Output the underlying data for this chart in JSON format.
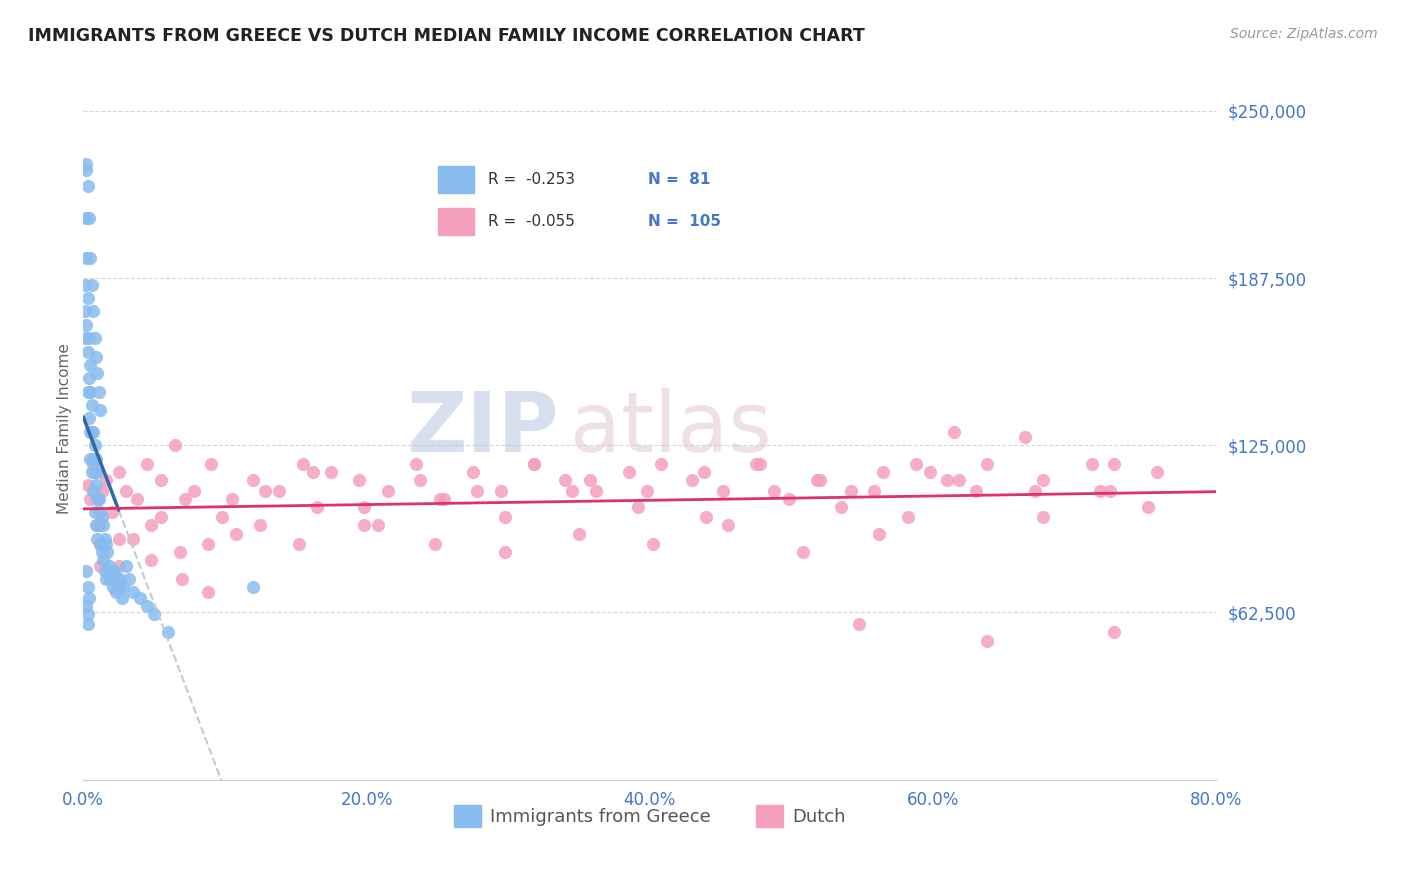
{
  "title": "IMMIGRANTS FROM GREECE VS DUTCH MEDIAN FAMILY INCOME CORRELATION CHART",
  "source_text": "Source: ZipAtlas.com",
  "ylabel": "Median Family Income",
  "xlim": [
    0.0,
    0.8
  ],
  "ylim": [
    0,
    262500
  ],
  "yticks": [
    0,
    62500,
    125000,
    187500,
    250000
  ],
  "ytick_labels": [
    "",
    "$62,500",
    "$125,000",
    "$187,500",
    "$250,000"
  ],
  "xticks": [
    0.0,
    0.2,
    0.4,
    0.6,
    0.8
  ],
  "xtick_labels": [
    "0.0%",
    "20.0%",
    "40.0%",
    "60.0%",
    "80.0%"
  ],
  "blue_dot_color": "#88BBEE",
  "pink_dot_color": "#F4A0BB",
  "blue_line_color": "#3366AA",
  "pink_line_color": "#DD3366",
  "dashed_color": "#BBCCDD",
  "legend_R1": "-0.253",
  "legend_N1": "81",
  "legend_R2": "-0.055",
  "legend_N2": "105",
  "label1": "Immigrants from Greece",
  "label2": "Dutch",
  "title_color": "#222222",
  "axis_label_color": "#666666",
  "tick_color": "#4477CC",
  "grid_color": "#CCCCCC",
  "source_color": "#999999",
  "watermark_zip_color": "#AABBDD",
  "watermark_atlas_color": "#DDBBCC",
  "blue_x": [
    0.001,
    0.001,
    0.001,
    0.002,
    0.002,
    0.002,
    0.003,
    0.003,
    0.003,
    0.004,
    0.004,
    0.004,
    0.005,
    0.005,
    0.005,
    0.005,
    0.006,
    0.006,
    0.006,
    0.007,
    0.007,
    0.007,
    0.008,
    0.008,
    0.008,
    0.009,
    0.009,
    0.009,
    0.01,
    0.01,
    0.01,
    0.011,
    0.011,
    0.012,
    0.012,
    0.013,
    0.013,
    0.014,
    0.014,
    0.015,
    0.015,
    0.016,
    0.016,
    0.017,
    0.018,
    0.019,
    0.02,
    0.021,
    0.022,
    0.023,
    0.024,
    0.025,
    0.026,
    0.027,
    0.028,
    0.03,
    0.032,
    0.035,
    0.04,
    0.045,
    0.002,
    0.003,
    0.004,
    0.005,
    0.006,
    0.007,
    0.008,
    0.009,
    0.01,
    0.011,
    0.012,
    0.002,
    0.003,
    0.004,
    0.12,
    0.002,
    0.003,
    0.003,
    0.05,
    0.06,
    0.002
  ],
  "blue_y": [
    175000,
    185000,
    165000,
    195000,
    210000,
    170000,
    180000,
    160000,
    145000,
    165000,
    150000,
    135000,
    155000,
    145000,
    130000,
    120000,
    140000,
    130000,
    115000,
    130000,
    120000,
    108000,
    125000,
    115000,
    100000,
    120000,
    110000,
    95000,
    115000,
    105000,
    90000,
    105000,
    95000,
    100000,
    88000,
    98000,
    85000,
    95000,
    82000,
    90000,
    78000,
    88000,
    75000,
    85000,
    80000,
    75000,
    78000,
    72000,
    78000,
    70000,
    75000,
    72000,
    75000,
    68000,
    72000,
    80000,
    75000,
    70000,
    68000,
    65000,
    228000,
    222000,
    210000,
    195000,
    185000,
    175000,
    165000,
    158000,
    152000,
    145000,
    138000,
    78000,
    72000,
    68000,
    72000,
    65000,
    62000,
    58000,
    62000,
    55000,
    230000
  ],
  "pink_x": [
    0.003,
    0.005,
    0.007,
    0.01,
    0.013,
    0.016,
    0.02,
    0.025,
    0.03,
    0.038,
    0.045,
    0.055,
    0.065,
    0.078,
    0.09,
    0.105,
    0.12,
    0.138,
    0.155,
    0.175,
    0.195,
    0.215,
    0.235,
    0.255,
    0.275,
    0.295,
    0.318,
    0.34,
    0.362,
    0.385,
    0.408,
    0.43,
    0.452,
    0.475,
    0.498,
    0.52,
    0.542,
    0.565,
    0.588,
    0.61,
    0.048,
    0.072,
    0.098,
    0.128,
    0.162,
    0.198,
    0.238,
    0.278,
    0.318,
    0.358,
    0.398,
    0.438,
    0.478,
    0.518,
    0.558,
    0.598,
    0.638,
    0.678,
    0.718,
    0.758,
    0.025,
    0.055,
    0.088,
    0.125,
    0.165,
    0.208,
    0.252,
    0.298,
    0.345,
    0.392,
    0.44,
    0.488,
    0.535,
    0.582,
    0.63,
    0.678,
    0.725,
    0.012,
    0.035,
    0.068,
    0.108,
    0.152,
    0.198,
    0.248,
    0.298,
    0.35,
    0.402,
    0.455,
    0.508,
    0.562,
    0.618,
    0.672,
    0.728,
    0.752,
    0.012,
    0.025,
    0.07,
    0.615,
    0.665,
    0.712,
    0.088,
    0.548,
    0.638,
    0.728,
    0.048
  ],
  "pink_y": [
    110000,
    105000,
    118000,
    95000,
    108000,
    112000,
    100000,
    115000,
    108000,
    105000,
    118000,
    112000,
    125000,
    108000,
    118000,
    105000,
    112000,
    108000,
    118000,
    115000,
    112000,
    108000,
    118000,
    105000,
    115000,
    108000,
    118000,
    112000,
    108000,
    115000,
    118000,
    112000,
    108000,
    118000,
    105000,
    112000,
    108000,
    115000,
    118000,
    112000,
    95000,
    105000,
    98000,
    108000,
    115000,
    102000,
    112000,
    108000,
    118000,
    112000,
    108000,
    115000,
    118000,
    112000,
    108000,
    115000,
    118000,
    112000,
    108000,
    115000,
    90000,
    98000,
    88000,
    95000,
    102000,
    95000,
    105000,
    98000,
    108000,
    102000,
    98000,
    108000,
    102000,
    98000,
    108000,
    98000,
    108000,
    80000,
    90000,
    85000,
    92000,
    88000,
    95000,
    88000,
    85000,
    92000,
    88000,
    95000,
    85000,
    92000,
    112000,
    108000,
    118000,
    102000,
    88000,
    80000,
    75000,
    130000,
    128000,
    118000,
    70000,
    58000,
    52000,
    55000,
    82000
  ]
}
